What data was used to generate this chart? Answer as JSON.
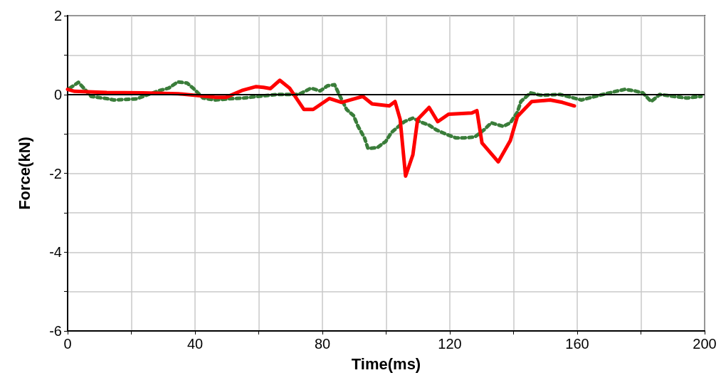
{
  "chart_data": {
    "type": "line",
    "xlabel": "Time(ms)",
    "ylabel": "Force(kN)",
    "xlim": [
      0,
      200
    ],
    "ylim": [
      -6,
      2
    ],
    "xticks": [
      0,
      {
        "value": 20,
        "label": null
      },
      40,
      {
        "value": 60,
        "label": null
      },
      80,
      {
        "value": 100,
        "label": null
      },
      120,
      {
        "value": 140,
        "label": null
      },
      160,
      {
        "value": 180,
        "label": null
      },
      200
    ],
    "yticks": [
      -6,
      {
        "value": -5,
        "label": null
      },
      -4,
      {
        "value": -3,
        "label": null
      },
      -2,
      {
        "value": -1,
        "label": null
      },
      0,
      {
        "value": 1,
        "label": null
      },
      2
    ],
    "grid": true,
    "marker": "none",
    "ref_lines": [
      {
        "axis": "y",
        "value": 0,
        "color": "#000000"
      }
    ],
    "series": [
      {
        "color": "#3a7d3a",
        "line_style": "dotted",
        "x": [
          0.7,
          3.4,
          7.4,
          12.7,
          14.5,
          21.7,
          28.4,
          31.7,
          34.6,
          37.5,
          39.8,
          42.5,
          46.3,
          50.7,
          55.2,
          59.7,
          65.9,
          72.6,
          76.4,
          79.3,
          81.6,
          83.8,
          85.4,
          87.6,
          89.8,
          91.2,
          93.2,
          94.3,
          97.2,
          99.9,
          101.7,
          105.7,
          108.4,
          110.6,
          113.5,
          115.8,
          118.9,
          121.8,
          124.7,
          127.8,
          130.7,
          133,
          136.8,
          139,
          141.2,
          142.3,
          145.3,
          148.6,
          154.6,
          161.3,
          168,
          172.7,
          175,
          178.1,
          180.6,
          183.2,
          185.9,
          190.4,
          194.4,
          198.9
        ],
        "values": [
          0.16,
          0.31,
          -0.05,
          -0.11,
          -0.14,
          -0.11,
          0.09,
          0.16,
          0.32,
          0.29,
          0.13,
          -0.09,
          -0.14,
          -0.11,
          -0.09,
          -0.05,
          0,
          0,
          0.16,
          0.09,
          0.22,
          0.25,
          -0.02,
          -0.38,
          -0.54,
          -0.81,
          -1.1,
          -1.37,
          -1.35,
          -1.19,
          -0.96,
          -0.69,
          -0.6,
          -0.69,
          -0.78,
          -0.9,
          -1.01,
          -1.1,
          -1.1,
          -1.08,
          -0.9,
          -0.72,
          -0.81,
          -0.72,
          -0.45,
          -0.18,
          0.04,
          -0.02,
          0,
          -0.14,
          0,
          0.09,
          0.13,
          0.09,
          0.04,
          -0.18,
          0,
          -0.05,
          -0.09,
          -0.05
        ]
      },
      {
        "color": "#ff0000",
        "line_style": "solid",
        "x": [
          0,
          2.2,
          12.3,
          23.5,
          34.6,
          46.3,
          49.8,
          54.7,
          59.2,
          61.5,
          63.7,
          66.6,
          69.7,
          74.2,
          77.1,
          82.2,
          86,
          92.7,
          95.6,
          101,
          102.8,
          104.4,
          106.1,
          108.4,
          109.9,
          113.5,
          116.2,
          119.6,
          126.9,
          128.5,
          130.1,
          135.2,
          139,
          141.2,
          145.7,
          151.5,
          155.3,
          159.1
        ],
        "values": [
          0.13,
          0.08,
          0.05,
          0.04,
          0.02,
          -0.07,
          -0.07,
          0.1,
          0.2,
          0.18,
          0.15,
          0.36,
          0.16,
          -0.38,
          -0.38,
          -0.1,
          -0.2,
          -0.05,
          -0.24,
          -0.29,
          -0.18,
          -0.63,
          -2.07,
          -1.53,
          -0.63,
          -0.33,
          -0.69,
          -0.5,
          -0.47,
          -0.41,
          -1.23,
          -1.71,
          -1.17,
          -0.56,
          -0.18,
          -0.14,
          -0.2,
          -0.29
        ]
      }
    ]
  }
}
